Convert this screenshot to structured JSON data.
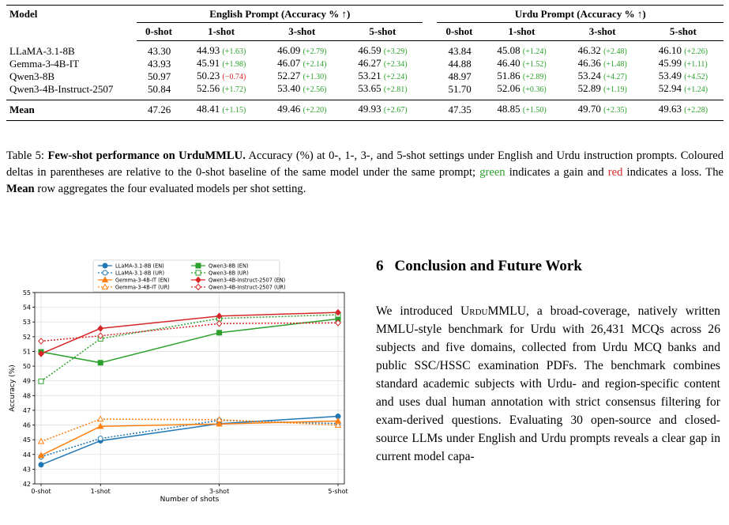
{
  "table": {
    "col_model": "Model",
    "group_en": "English Prompt (Accuracy % ↑)",
    "group_ur": "Urdu Prompt (Accuracy % ↑)",
    "shots": [
      "0-shot",
      "1-shot",
      "3-shot",
      "5-shot"
    ],
    "rows": [
      {
        "model": "LLaMA-3.1-8B",
        "en": [
          {
            "v": "43.30"
          },
          {
            "v": "44.93",
            "d": "(+1.63)",
            "c": "g"
          },
          {
            "v": "46.09",
            "d": "(+2.79)",
            "c": "g"
          },
          {
            "v": "46.59",
            "d": "(+3.29)",
            "c": "g"
          }
        ],
        "ur": [
          {
            "v": "43.84"
          },
          {
            "v": "45.08",
            "d": "(+1.24)",
            "c": "g"
          },
          {
            "v": "46.32",
            "d": "(+2.48)",
            "c": "g"
          },
          {
            "v": "46.10",
            "d": "(+2.26)",
            "c": "g"
          }
        ]
      },
      {
        "model": "Gemma-3-4B-IT",
        "en": [
          {
            "v": "43.93"
          },
          {
            "v": "45.91",
            "d": "(+1.98)",
            "c": "g"
          },
          {
            "v": "46.07",
            "d": "(+2.14)",
            "c": "g"
          },
          {
            "v": "46.27",
            "d": "(+2.34)",
            "c": "g"
          }
        ],
        "ur": [
          {
            "v": "44.88"
          },
          {
            "v": "46.40",
            "d": "(+1.52)",
            "c": "g"
          },
          {
            "v": "46.36",
            "d": "(+1.48)",
            "c": "g"
          },
          {
            "v": "45.99",
            "d": "(+1.11)",
            "c": "g"
          }
        ]
      },
      {
        "model": "Qwen3-8B",
        "en": [
          {
            "v": "50.97"
          },
          {
            "v": "50.23",
            "d": "(−0.74)",
            "c": "r"
          },
          {
            "v": "52.27",
            "d": "(+1.30)",
            "c": "g"
          },
          {
            "v": "53.21",
            "d": "(+2.24)",
            "c": "g"
          }
        ],
        "ur": [
          {
            "v": "48.97"
          },
          {
            "v": "51.86",
            "d": "(+2.89)",
            "c": "g"
          },
          {
            "v": "53.24",
            "d": "(+4.27)",
            "c": "g"
          },
          {
            "v": "53.49",
            "d": "(+4.52)",
            "c": "g"
          }
        ]
      },
      {
        "model": "Qwen3-4B-Instruct-2507",
        "en": [
          {
            "v": "50.84"
          },
          {
            "v": "52.56",
            "d": "(+1.72)",
            "c": "g"
          },
          {
            "v": "53.40",
            "d": "(+2.56)",
            "c": "g"
          },
          {
            "v": "53.65",
            "d": "(+2.81)",
            "c": "g"
          }
        ],
        "ur": [
          {
            "v": "51.70"
          },
          {
            "v": "52.06",
            "d": "(+0.36)",
            "c": "g"
          },
          {
            "v": "52.89",
            "d": "(+1.19)",
            "c": "g"
          },
          {
            "v": "52.94",
            "d": "(+1.24)",
            "c": "g"
          }
        ]
      }
    ],
    "mean": {
      "model": "Mean",
      "en": [
        {
          "v": "47.26"
        },
        {
          "v": "48.41",
          "d": "(+1.15)",
          "c": "g"
        },
        {
          "v": "49.46",
          "d": "(+2.20)",
          "c": "g"
        },
        {
          "v": "49.93",
          "d": "(+2.67)",
          "c": "g"
        }
      ],
      "ur": [
        {
          "v": "47.35"
        },
        {
          "v": "48.85",
          "d": "(+1.50)",
          "c": "g"
        },
        {
          "v": "49.70",
          "d": "(+2.35)",
          "c": "g"
        },
        {
          "v": "49.63",
          "d": "(+2.28)",
          "c": "g"
        }
      ]
    }
  },
  "caption": {
    "label": "Table 5:",
    "title": "Few-shot performance on UrduMMLU.",
    "t1": "Accuracy (%) at 0-, 1-, 3-, and 5-shot settings under English and Urdu instruction prompts. Coloured deltas in parentheses are relative to the 0-shot baseline of the same model under the same prompt;",
    "green_word": "green",
    "t2": "indicates a gain and",
    "red_word": "red",
    "t3": "indicates a loss. The",
    "mean_word": "Mean",
    "t4": "row aggregates the four evaluated models per shot setting."
  },
  "section": {
    "number": "6",
    "title": "Conclusion and Future Work",
    "p_before": "We introduced",
    "p_name": "UrduMMLU",
    "p_after": ", a broad-coverage, natively written MMLU-style benchmark for Urdu with 26,431 MCQs across 26 subjects and five domains, collected from Urdu MCQ banks and public SSC/HSSC examination PDFs. The benchmark combines standard academic subjects with Urdu- and region-specific content and uses dual human annotation with strict consensus filtering for exam-derived questions. Evaluating 30 open-source and closed-source LLMs under English and Urdu prompts reveals a clear gap in current model capa-"
  },
  "chart_data": {
    "type": "line",
    "x": [
      0,
      1,
      3,
      5
    ],
    "x_tick_labels": [
      "0-shot",
      "1-shot",
      "3-shot",
      "5-shot"
    ],
    "xlabel": "Number of shots",
    "ylabel": "Accuracy (%)",
    "ylim": [
      42,
      55
    ],
    "y_ticks": [
      42,
      43,
      44,
      45,
      46,
      47,
      48,
      49,
      50,
      51,
      52,
      53,
      54,
      55
    ],
    "grid": true,
    "legend_position": "top",
    "series": [
      {
        "name": "LLaMA-3.1-8B (EN)",
        "color": "#1f77b4",
        "dash": "solid",
        "marker": "circle",
        "filled": true,
        "values": [
          43.3,
          44.93,
          46.09,
          46.59
        ]
      },
      {
        "name": "LLaMA-3.1-8B (UR)",
        "color": "#1f77b4",
        "dash": "dotted",
        "marker": "circle",
        "filled": false,
        "values": [
          43.84,
          45.08,
          46.32,
          46.1
        ]
      },
      {
        "name": "Gemma-3-4B-IT (EN)",
        "color": "#ff7f0e",
        "dash": "solid",
        "marker": "triangle",
        "filled": true,
        "values": [
          43.93,
          45.91,
          46.07,
          46.27
        ]
      },
      {
        "name": "Gemma-3-4B-IT (UR)",
        "color": "#ff7f0e",
        "dash": "dotted",
        "marker": "triangle",
        "filled": false,
        "values": [
          44.88,
          46.4,
          46.36,
          45.99
        ]
      },
      {
        "name": "Qwen3-8B (EN)",
        "color": "#2ca02c",
        "dash": "solid",
        "marker": "square",
        "filled": true,
        "values": [
          50.97,
          50.23,
          52.27,
          53.21
        ]
      },
      {
        "name": "Qwen3-8B (UR)",
        "color": "#2ca02c",
        "dash": "dotted",
        "marker": "square",
        "filled": false,
        "values": [
          48.97,
          51.86,
          53.24,
          53.49
        ]
      },
      {
        "name": "Qwen3-4B-Instruct-2507 (EN)",
        "color": "#d62728",
        "dash": "solid",
        "marker": "diamond",
        "filled": true,
        "values": [
          50.84,
          52.56,
          53.4,
          53.65
        ]
      },
      {
        "name": "Qwen3-4B-Instruct-2507 (UR)",
        "color": "#d62728",
        "dash": "dotted",
        "marker": "diamond",
        "filled": false,
        "values": [
          51.7,
          52.06,
          52.89,
          52.94
        ]
      }
    ]
  }
}
